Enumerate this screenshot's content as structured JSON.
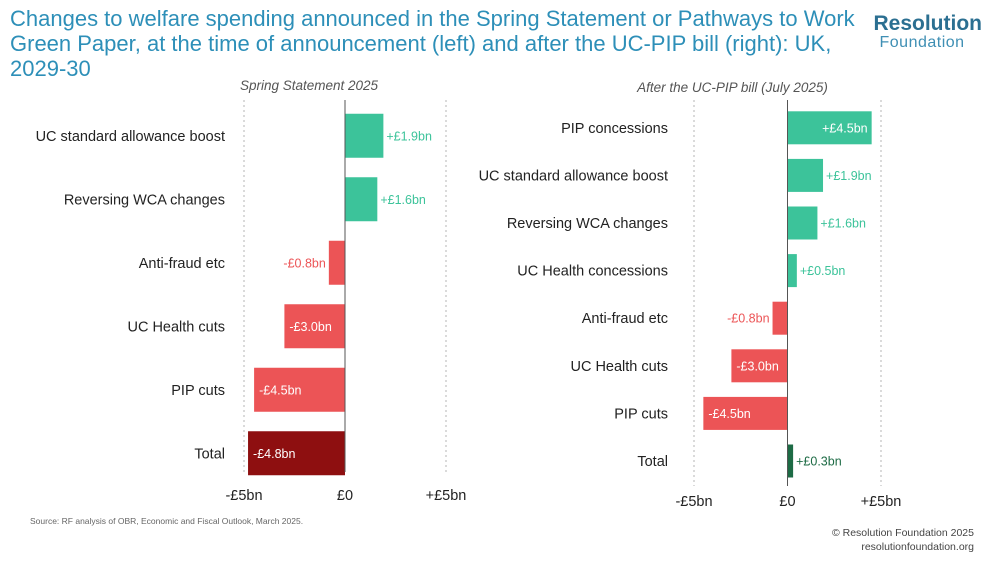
{
  "header": {
    "title": "Changes to welfare spending announced in the Spring Statement or Pathways to Work Green Paper, at the time of announcement (left) and after the UC-PIP bill (right): UK, 2029-30",
    "logo_line1": "Resolution",
    "logo_line2": "Foundation"
  },
  "colors": {
    "positive": "#3cc39a",
    "negative": "#ec5456",
    "total_negative": "#8e0f10",
    "total_positive": "#1d6b45"
  },
  "chart_data": [
    {
      "type": "bar",
      "orientation": "horizontal",
      "title": "Spring Statement  2025",
      "categories": [
        "UC standard allowance boost",
        "Reversing WCA changes",
        "Anti-fraud etc",
        "UC Health cuts",
        "PIP cuts",
        "Total"
      ],
      "values": [
        1.9,
        1.6,
        -0.8,
        -3.0,
        -4.5,
        -4.8
      ],
      "data_labels": [
        "+£1.9bn",
        "+£1.6bn",
        "-£0.8bn",
        "-£3.0bn",
        "-£4.5bn",
        "-£4.8bn"
      ],
      "xlim": [
        -5,
        5
      ],
      "x_ticks": [
        -5,
        0,
        5
      ],
      "x_tick_labels": [
        "-£5bn",
        "£0",
        "+£5bn"
      ],
      "grid": "dashed vertical lines at -5 and 5"
    },
    {
      "type": "bar",
      "orientation": "horizontal",
      "title": "After the UC-PIP bill (July 2025)",
      "categories": [
        "PIP concessions",
        "UC standard allowance boost",
        "Reversing WCA changes",
        "UC Health concessions",
        "Anti-fraud etc",
        "UC Health cuts",
        "PIP cuts",
        "Total"
      ],
      "values": [
        4.5,
        1.9,
        1.6,
        0.5,
        -0.8,
        -3.0,
        -4.5,
        0.3
      ],
      "data_labels": [
        "+£4.5bn",
        "+£1.9bn",
        "+£1.6bn",
        "+£0.5bn",
        "-£0.8bn",
        "-£3.0bn",
        "-£4.5bn",
        "+£0.3bn"
      ],
      "xlim": [
        -5,
        5
      ],
      "x_ticks": [
        -5,
        0,
        5
      ],
      "x_tick_labels": [
        "-£5bn",
        "£0",
        "+£5bn"
      ],
      "grid": "dashed vertical lines at -5 and 5"
    }
  ],
  "footer": {
    "source": "Source: RF analysis of OBR, Economic and Fiscal Outlook, March 2025.",
    "copyright": "© Resolution Foundation 2025",
    "website": "resolutionfoundation.org"
  }
}
